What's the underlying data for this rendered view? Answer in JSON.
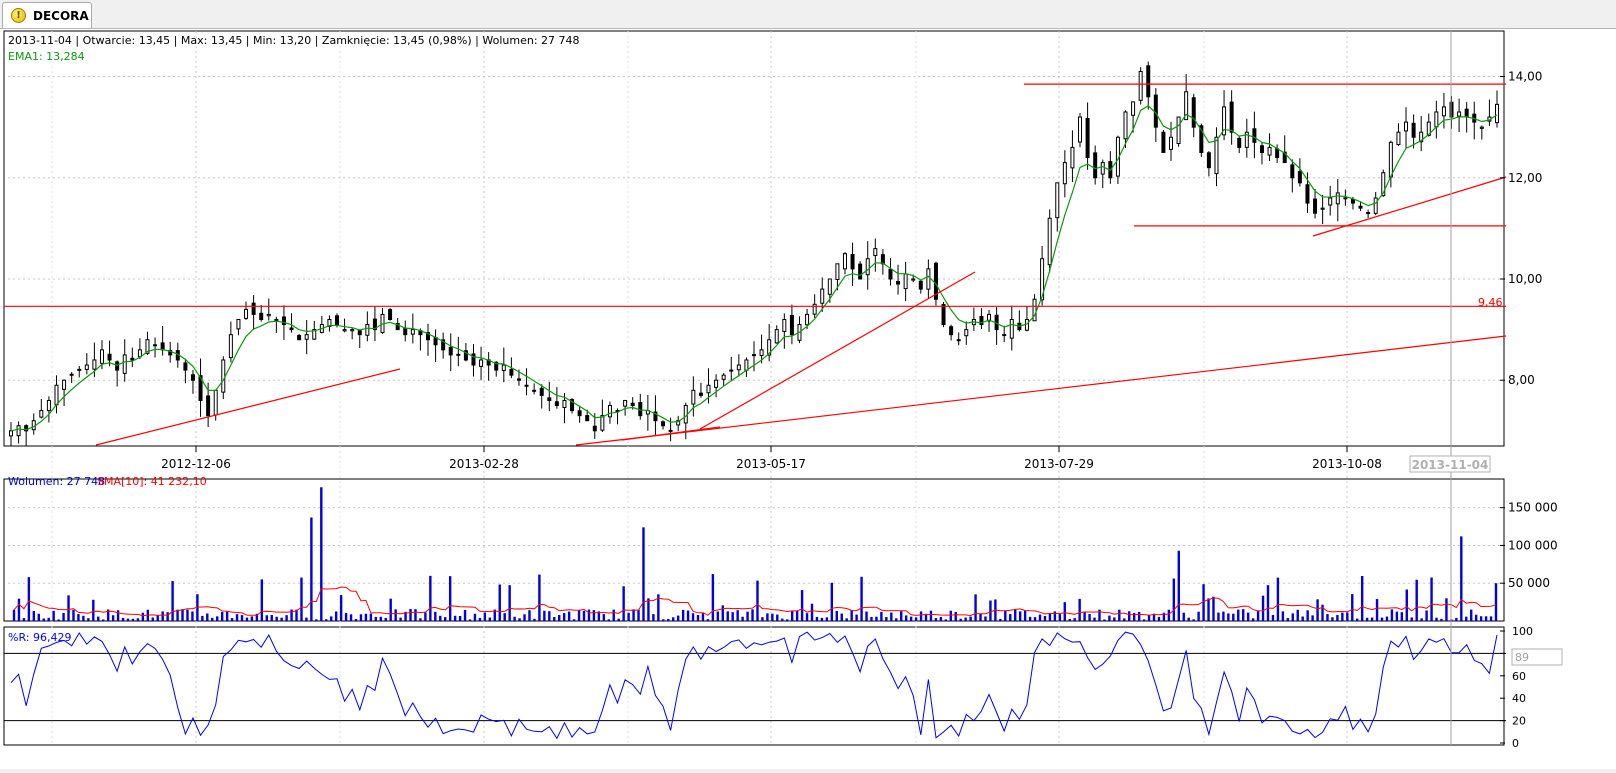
{
  "tab": {
    "label": "DECORA",
    "icon": "warning-coin-icon"
  },
  "header": {
    "info_line": "2013-11-04 | Otwarcie: 13,45 | Max: 13,45 | Min: 13,20 | Zamknięcie: 13,45 (0,98%)  | Wolumen: 27 748",
    "ema_label": "EMA1: 13,284",
    "volume_label": "Wolumen: 27 748",
    "sma_label": "SMA[10]: 41 232,10",
    "wr_label": "%R: 96,429",
    "level_label": "9,46",
    "cursor_date": "2013-11-04",
    "cursor_wr": "89"
  },
  "colors": {
    "candle": "#000000",
    "ema": "#0a9a0a",
    "trendline": "#ff0000",
    "volume": "#0000e0",
    "sma": "#ff0000",
    "wr": "#0000ff",
    "grid": "#c8c8c8"
  },
  "chart_data": [
    {
      "type": "candlestick",
      "name": "price",
      "x_tick_labels": [
        "2012-12-06",
        "2013-02-28",
        "2013-05-17",
        "2013-07-29",
        "2013-10-08"
      ],
      "y_tick_labels": [
        "8,00",
        "10,00",
        "12,00",
        "14,00"
      ],
      "ylim": [
        6.7,
        14.9
      ],
      "last_candle": {
        "date": "2013-11-04",
        "open": 13.45,
        "high": 13.45,
        "low": 13.2,
        "close": 13.45,
        "change_pct": 0.98
      },
      "ema_last": 13.284,
      "close_series": [
        7.0,
        7.1,
        7.0,
        7.2,
        7.4,
        7.6,
        7.9,
        8.0,
        8.1,
        8.2,
        8.3,
        8.4,
        8.6,
        8.4,
        8.2,
        8.5,
        8.4,
        8.6,
        8.8,
        8.7,
        8.6,
        8.5,
        8.4,
        8.2,
        8.0,
        7.6,
        7.3,
        7.8,
        8.4,
        8.9,
        9.2,
        9.4,
        9.3,
        9.2,
        9.3,
        9.2,
        9.1,
        9.0,
        8.8,
        8.9,
        9.0,
        9.1,
        9.2,
        9.1,
        9.0,
        9.0,
        8.9,
        9.1,
        9.0,
        9.3,
        9.2,
        9.0,
        8.9,
        9.0,
        8.9,
        8.8,
        8.7,
        8.6,
        8.5,
        8.5,
        8.4,
        8.3,
        8.4,
        8.3,
        8.2,
        8.3,
        8.1,
        8.0,
        7.9,
        7.8,
        7.7,
        7.6,
        7.5,
        7.6,
        7.4,
        7.3,
        7.2,
        7.0,
        7.3,
        7.5,
        7.4,
        7.6,
        7.5,
        7.3,
        7.4,
        7.2,
        7.1,
        7.0,
        7.2,
        7.5,
        7.8,
        7.7,
        7.9,
        8.0,
        8.1,
        8.2,
        8.3,
        8.4,
        8.5,
        8.6,
        8.8,
        9.0,
        9.2,
        8.9,
        9.1,
        9.3,
        9.5,
        9.8,
        10.0,
        10.3,
        10.5,
        10.2,
        10.0,
        10.4,
        10.6,
        10.3,
        10.0,
        9.9,
        10.1,
        10.0,
        9.8,
        10.2,
        9.6,
        9.1,
        8.9,
        8.8,
        9.0,
        9.2,
        9.1,
        9.3,
        9.0,
        8.9,
        9.2,
        9.0,
        9.2,
        9.6,
        10.4,
        11.2,
        11.9,
        12.3,
        12.6,
        13.2,
        12.4,
        12.0,
        12.3,
        12.0,
        12.8,
        13.3,
        13.5,
        14.1,
        13.6,
        13.0,
        12.5,
        12.8,
        13.2,
        13.7,
        13.0,
        12.5,
        12.2,
        12.8,
        13.4,
        12.9,
        12.6,
        12.9,
        12.7,
        12.5,
        12.6,
        12.4,
        12.3,
        12.0,
        11.9,
        11.5,
        11.3,
        11.4,
        11.6,
        11.7,
        11.6,
        11.5,
        11.4,
        11.3,
        11.6,
        12.1,
        12.7,
        12.9,
        13.1,
        12.8,
        12.9,
        13.1,
        13.3,
        13.4,
        13.2,
        13.3,
        13.2,
        13.1,
        13.0,
        13.2,
        13.45
      ]
    },
    {
      "type": "line",
      "name": "trendlines",
      "horizontal_levels": [
        13.85,
        11.05,
        9.46
      ],
      "level_label": "9,46"
    },
    {
      "type": "bar",
      "name": "volume",
      "y_tick_labels": [
        "50 000",
        "100 000",
        "150 000"
      ],
      "ylim": [
        0,
        180000
      ],
      "last_value": 27748,
      "sma_last": 41232.1,
      "spikes": [
        {
          "index": 60,
          "value": 137000
        },
        {
          "index": 62,
          "value": 177000
        },
        {
          "index": 127,
          "value": 124000
        },
        {
          "index": 235,
          "value": 93000
        },
        {
          "index": 292,
          "value": 112000
        }
      ]
    },
    {
      "type": "line",
      "name": "williams-r",
      "y_tick_labels": [
        "0",
        "20",
        "40",
        "60",
        "80",
        "100"
      ],
      "ylim": [
        0,
        100
      ],
      "thresholds": [
        20,
        80
      ],
      "last_value": 96.429
    }
  ]
}
